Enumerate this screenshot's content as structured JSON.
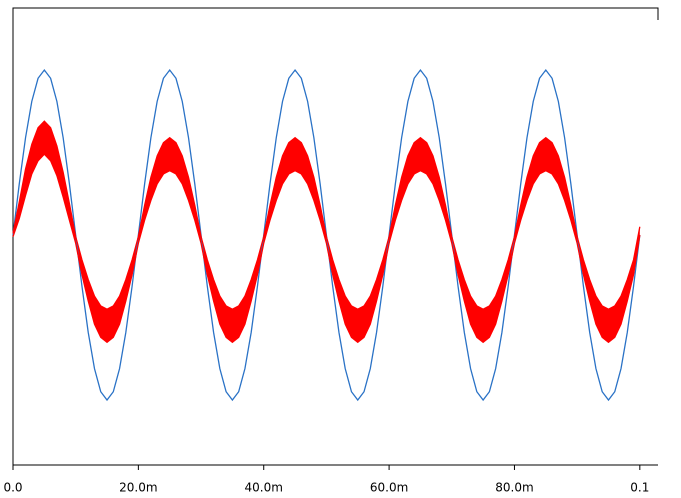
{
  "chart_data": {
    "type": "line",
    "x": [
      0,
      0.001,
      0.002,
      0.003,
      0.004,
      0.005,
      0.006,
      0.007,
      0.008,
      0.009,
      0.01,
      0.011,
      0.012,
      0.013,
      0.014,
      0.015,
      0.016,
      0.017,
      0.018,
      0.019,
      0.02,
      0.021,
      0.022,
      0.023,
      0.024,
      0.025,
      0.026,
      0.027,
      0.028,
      0.029,
      0.03,
      0.031,
      0.032,
      0.033,
      0.034,
      0.035,
      0.036,
      0.037,
      0.038,
      0.039,
      0.04,
      0.041,
      0.042,
      0.043,
      0.044,
      0.045,
      0.046,
      0.047,
      0.048,
      0.049,
      0.05,
      0.051,
      0.052,
      0.053,
      0.054,
      0.055,
      0.056,
      0.057,
      0.058,
      0.059,
      0.06,
      0.061,
      0.062,
      0.063,
      0.064,
      0.065,
      0.066,
      0.067,
      0.068,
      0.069,
      0.07,
      0.071,
      0.072,
      0.073,
      0.074,
      0.075,
      0.076,
      0.077,
      0.078,
      0.079,
      0.08,
      0.081,
      0.082,
      0.083,
      0.084,
      0.085,
      0.086,
      0.087,
      0.088,
      0.089,
      0.09,
      0.091,
      0.092,
      0.093,
      0.094,
      0.095,
      0.096,
      0.097,
      0.098,
      0.099,
      0.1
    ],
    "series": [
      {
        "color": "#2a72c6",
        "values": [
          0,
          0.31,
          0.59,
          0.81,
          0.95,
          1,
          0.95,
          0.81,
          0.59,
          0.31,
          0,
          -0.31,
          -0.59,
          -0.81,
          -0.95,
          -1,
          -0.95,
          -0.81,
          -0.59,
          -0.31,
          0,
          0.31,
          0.59,
          0.81,
          0.95,
          1,
          0.95,
          0.81,
          0.59,
          0.31,
          0,
          -0.31,
          -0.59,
          -0.81,
          -0.95,
          -1,
          -0.95,
          -0.81,
          -0.59,
          -0.31,
          0,
          0.31,
          0.59,
          0.81,
          0.95,
          1,
          0.95,
          0.81,
          0.59,
          0.31,
          0,
          -0.31,
          -0.59,
          -0.81,
          -0.95,
          -1,
          -0.95,
          -0.81,
          -0.59,
          -0.31,
          0,
          0.31,
          0.59,
          0.81,
          0.95,
          1,
          0.95,
          0.81,
          0.59,
          0.31,
          0,
          -0.31,
          -0.59,
          -0.81,
          -0.95,
          -1,
          -0.95,
          -0.81,
          -0.59,
          -0.31,
          0,
          0.31,
          0.59,
          0.81,
          0.95,
          1,
          0.95,
          0.81,
          0.59,
          0.31,
          0,
          -0.31,
          -0.59,
          -0.81,
          -0.95,
          -1,
          -0.95,
          -0.81,
          -0.59,
          -0.31,
          0
        ]
      },
      {
        "color": "#ff0000",
        "values": [
          0.01,
          0.2,
          0.4,
          0.55,
          0.65,
          0.69,
          0.65,
          0.54,
          0.38,
          0.19,
          -0.01,
          -0.15,
          -0.27,
          -0.37,
          -0.43,
          -0.45,
          -0.43,
          -0.37,
          -0.27,
          -0.15,
          -0.01,
          0.18,
          0.35,
          0.48,
          0.56,
          0.59,
          0.56,
          0.48,
          0.35,
          0.18,
          -0.01,
          -0.15,
          -0.27,
          -0.37,
          -0.43,
          -0.45,
          -0.43,
          -0.37,
          -0.27,
          -0.15,
          -0.01,
          0.18,
          0.35,
          0.48,
          0.56,
          0.59,
          0.56,
          0.48,
          0.35,
          0.18,
          -0.01,
          -0.15,
          -0.27,
          -0.37,
          -0.43,
          -0.45,
          -0.43,
          -0.37,
          -0.27,
          -0.15,
          -0.01,
          0.18,
          0.35,
          0.48,
          0.56,
          0.59,
          0.56,
          0.48,
          0.35,
          0.18,
          -0.01,
          -0.15,
          -0.27,
          -0.37,
          -0.43,
          -0.45,
          -0.43,
          -0.37,
          -0.27,
          -0.15,
          -0.01,
          0.18,
          0.35,
          0.48,
          0.56,
          0.59,
          0.56,
          0.48,
          0.35,
          0.18,
          -0.01,
          -0.15,
          -0.27,
          -0.37,
          -0.43,
          -0.45,
          -0.43,
          -0.37,
          -0.27,
          -0.15,
          0.05
        ]
      },
      {
        "color": "#ff0000",
        "values": [
          -0.01,
          0.1,
          0.24,
          0.37,
          0.45,
          0.49,
          0.45,
          0.36,
          0.23,
          0.09,
          -0.05,
          -0.24,
          -0.4,
          -0.54,
          -0.62,
          -0.65,
          -0.62,
          -0.54,
          -0.4,
          -0.24,
          -0.05,
          0.09,
          0.21,
          0.31,
          0.37,
          0.39,
          0.37,
          0.31,
          0.21,
          0.09,
          -0.05,
          -0.24,
          -0.4,
          -0.54,
          -0.62,
          -0.65,
          -0.62,
          -0.54,
          -0.4,
          -0.24,
          -0.05,
          0.09,
          0.21,
          0.31,
          0.37,
          0.39,
          0.37,
          0.31,
          0.21,
          0.09,
          -0.05,
          -0.24,
          -0.4,
          -0.54,
          -0.62,
          -0.65,
          -0.62,
          -0.54,
          -0.4,
          -0.24,
          -0.05,
          0.09,
          0.21,
          0.31,
          0.37,
          0.39,
          0.37,
          0.31,
          0.21,
          0.09,
          -0.05,
          -0.24,
          -0.4,
          -0.54,
          -0.62,
          -0.65,
          -0.62,
          -0.54,
          -0.4,
          -0.24,
          -0.05,
          0.09,
          0.21,
          0.31,
          0.37,
          0.39,
          0.37,
          0.31,
          0.21,
          0.09,
          -0.05,
          -0.24,
          -0.4,
          -0.54,
          -0.62,
          -0.65,
          -0.62,
          -0.54,
          -0.4,
          -0.24,
          0
        ]
      }
    ],
    "fill_between": [
      1,
      2
    ],
    "xlim": [
      0,
      0.1029
    ],
    "ylim": [
      -1.394,
      1.376
    ],
    "xticks": [
      {
        "value": 0,
        "label": "0.0"
      },
      {
        "value": 0.02,
        "label": "20.0m"
      },
      {
        "value": 0.04,
        "label": "40.0m"
      },
      {
        "value": 0.06,
        "label": "60.0m"
      },
      {
        "value": 0.08,
        "label": "80.0m"
      },
      0.1
    ],
    "grid": false
  }
}
